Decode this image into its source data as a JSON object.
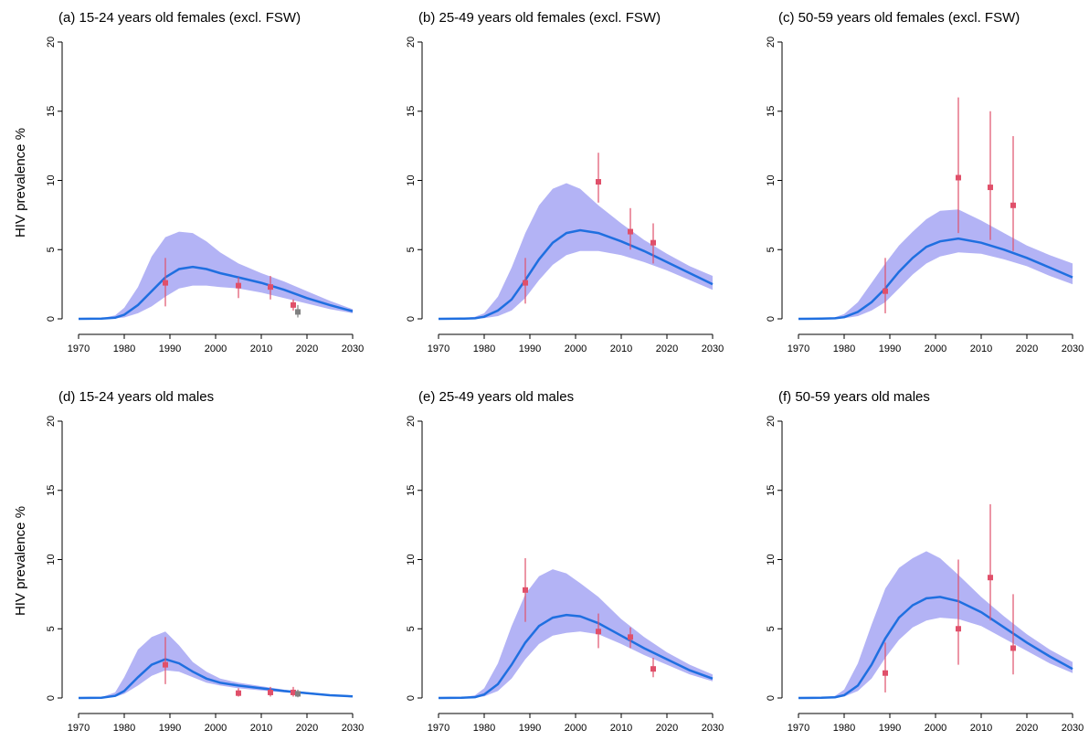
{
  "ylabel": "HIV prevalence %",
  "colors": {
    "band": "#b3b3f5",
    "line": "#1f6fe0",
    "obs": "#e0506a",
    "obs_grey": "#808080",
    "axis": "#000000"
  },
  "chart_data": [
    {
      "type": "line",
      "title": "(a) 15-24 years old females (excl. FSW)",
      "xlim": [
        1970,
        2030
      ],
      "ylim": [
        0,
        20
      ],
      "xticks": [
        1970,
        1980,
        1990,
        2000,
        2010,
        2020,
        2030
      ],
      "yticks": [
        0,
        5,
        10,
        15,
        20
      ],
      "x": [
        1970,
        1975,
        1978,
        1980,
        1983,
        1986,
        1989,
        1992,
        1995,
        1998,
        2001,
        2005,
        2010,
        2015,
        2020,
        2025,
        2030
      ],
      "median": [
        0,
        0.02,
        0.08,
        0.3,
        1.0,
        2.0,
        3.0,
        3.6,
        3.75,
        3.6,
        3.3,
        3.0,
        2.6,
        2.1,
        1.5,
        1.0,
        0.55
      ],
      "lower": [
        0,
        0.01,
        0.03,
        0.1,
        0.4,
        0.9,
        1.6,
        2.2,
        2.4,
        2.4,
        2.3,
        2.2,
        1.9,
        1.5,
        1.1,
        0.7,
        0.4
      ],
      "upper": [
        0,
        0.05,
        0.25,
        0.8,
        2.3,
        4.5,
        5.9,
        6.3,
        6.2,
        5.6,
        4.8,
        4.0,
        3.3,
        2.7,
        2.0,
        1.3,
        0.7
      ],
      "observations": [
        {
          "x": 1989,
          "y": 2.6,
          "lo": 0.9,
          "hi": 4.4
        },
        {
          "x": 2005,
          "y": 2.4,
          "lo": 1.5,
          "hi": 3.0
        },
        {
          "x": 2012,
          "y": 2.3,
          "lo": 1.4,
          "hi": 3.1
        },
        {
          "x": 2017,
          "y": 1.0,
          "lo": 0.6,
          "hi": 1.4
        }
      ],
      "observations_grey": [
        {
          "x": 2018,
          "y": 0.5,
          "lo": 0.1,
          "hi": 1.0
        }
      ]
    },
    {
      "type": "line",
      "title": "(b) 25-49 years old females (excl. FSW)",
      "xlim": [
        1970,
        2030
      ],
      "ylim": [
        0,
        20
      ],
      "xticks": [
        1970,
        1980,
        1990,
        2000,
        2010,
        2020,
        2030
      ],
      "yticks": [
        0,
        5,
        10,
        15,
        20
      ],
      "x": [
        1970,
        1975,
        1978,
        1980,
        1983,
        1986,
        1989,
        1992,
        1995,
        1998,
        2001,
        2005,
        2010,
        2015,
        2020,
        2025,
        2030
      ],
      "median": [
        0,
        0.01,
        0.04,
        0.15,
        0.6,
        1.4,
        2.8,
        4.3,
        5.5,
        6.2,
        6.4,
        6.2,
        5.6,
        4.9,
        4.1,
        3.3,
        2.5
      ],
      "lower": [
        0,
        0.005,
        0.02,
        0.05,
        0.2,
        0.6,
        1.5,
        2.8,
        3.9,
        4.6,
        4.9,
        4.9,
        4.6,
        4.1,
        3.5,
        2.8,
        2.1
      ],
      "upper": [
        0,
        0.03,
        0.15,
        0.4,
        1.6,
        3.7,
        6.2,
        8.2,
        9.4,
        9.8,
        9.4,
        8.2,
        6.9,
        5.7,
        4.7,
        3.8,
        3.1
      ],
      "observations": [
        {
          "x": 1989,
          "y": 2.6,
          "lo": 1.1,
          "hi": 4.4
        },
        {
          "x": 2005,
          "y": 9.9,
          "lo": 8.4,
          "hi": 12.0
        },
        {
          "x": 2012,
          "y": 6.3,
          "lo": 5.0,
          "hi": 8.0
        },
        {
          "x": 2017,
          "y": 5.5,
          "lo": 4.0,
          "hi": 6.9
        }
      ],
      "observations_grey": []
    },
    {
      "type": "line",
      "title": "(c) 50-59 years old females (excl. FSW)",
      "xlim": [
        1970,
        2030
      ],
      "ylim": [
        0,
        20
      ],
      "xticks": [
        1970,
        1980,
        1990,
        2000,
        2010,
        2020,
        2030
      ],
      "yticks": [
        0,
        5,
        10,
        15,
        20
      ],
      "x": [
        1970,
        1975,
        1978,
        1980,
        1983,
        1986,
        1989,
        1992,
        1995,
        1998,
        2001,
        2005,
        2010,
        2015,
        2020,
        2025,
        2030
      ],
      "median": [
        0,
        0.01,
        0.04,
        0.12,
        0.5,
        1.2,
        2.2,
        3.4,
        4.4,
        5.2,
        5.6,
        5.8,
        5.5,
        5.0,
        4.4,
        3.7,
        3.0
      ],
      "lower": [
        0,
        0.005,
        0.02,
        0.04,
        0.2,
        0.6,
        1.2,
        2.2,
        3.2,
        4.0,
        4.5,
        4.8,
        4.7,
        4.3,
        3.8,
        3.1,
        2.5
      ],
      "upper": [
        0,
        0.03,
        0.12,
        0.35,
        1.2,
        2.6,
        4.0,
        5.3,
        6.3,
        7.2,
        7.8,
        7.9,
        7.1,
        6.2,
        5.3,
        4.6,
        4.0
      ],
      "observations": [
        {
          "x": 1989,
          "y": 2.0,
          "lo": 0.4,
          "hi": 4.4
        },
        {
          "x": 2005,
          "y": 10.2,
          "lo": 6.2,
          "hi": 16.0
        },
        {
          "x": 2012,
          "y": 9.5,
          "lo": 5.7,
          "hi": 15.0
        },
        {
          "x": 2017,
          "y": 8.2,
          "lo": 4.9,
          "hi": 13.2
        }
      ],
      "observations_grey": []
    },
    {
      "type": "line",
      "title": "(d) 15-24 years old males",
      "xlim": [
        1970,
        2030
      ],
      "ylim": [
        0,
        20
      ],
      "xticks": [
        1970,
        1980,
        1990,
        2000,
        2010,
        2020,
        2030
      ],
      "yticks": [
        0,
        5,
        10,
        15,
        20
      ],
      "x": [
        1970,
        1975,
        1978,
        1980,
        1983,
        1986,
        1989,
        1992,
        1995,
        1998,
        2001,
        2005,
        2010,
        2015,
        2020,
        2025,
        2030
      ],
      "median": [
        0,
        0.02,
        0.15,
        0.5,
        1.5,
        2.4,
        2.8,
        2.5,
        1.9,
        1.4,
        1.1,
        0.9,
        0.7,
        0.5,
        0.35,
        0.2,
        0.12
      ],
      "lower": [
        0,
        0.01,
        0.08,
        0.3,
        0.9,
        1.6,
        2.0,
        1.9,
        1.5,
        1.1,
        0.9,
        0.7,
        0.55,
        0.4,
        0.28,
        0.15,
        0.08
      ],
      "upper": [
        0,
        0.05,
        0.4,
        1.5,
        3.5,
        4.4,
        4.8,
        3.8,
        2.6,
        1.9,
        1.4,
        1.1,
        0.85,
        0.6,
        0.42,
        0.25,
        0.15
      ],
      "observations": [
        {
          "x": 1989,
          "y": 2.4,
          "lo": 1.0,
          "hi": 4.4
        },
        {
          "x": 2005,
          "y": 0.35,
          "lo": 0.1,
          "hi": 0.7
        },
        {
          "x": 2012,
          "y": 0.4,
          "lo": 0.1,
          "hi": 0.8
        },
        {
          "x": 2017,
          "y": 0.4,
          "lo": 0.1,
          "hi": 0.8
        }
      ],
      "observations_grey": [
        {
          "x": 2018,
          "y": 0.3,
          "lo": 0.05,
          "hi": 0.6
        }
      ]
    },
    {
      "type": "line",
      "title": "(e) 25-49 years old males",
      "xlim": [
        1970,
        2030
      ],
      "ylim": [
        0,
        20
      ],
      "xticks": [
        1970,
        1980,
        1990,
        2000,
        2010,
        2020,
        2030
      ],
      "yticks": [
        0,
        5,
        10,
        15,
        20
      ],
      "x": [
        1970,
        1975,
        1978,
        1980,
        1983,
        1986,
        1989,
        1992,
        1995,
        1998,
        2001,
        2005,
        2010,
        2015,
        2020,
        2025,
        2030
      ],
      "median": [
        0,
        0.01,
        0.06,
        0.25,
        1.0,
        2.4,
        4.0,
        5.2,
        5.8,
        6.0,
        5.9,
        5.4,
        4.5,
        3.6,
        2.8,
        2.0,
        1.4
      ],
      "lower": [
        0,
        0.005,
        0.03,
        0.12,
        0.5,
        1.4,
        2.8,
        3.9,
        4.5,
        4.7,
        4.8,
        4.6,
        3.9,
        3.1,
        2.4,
        1.7,
        1.2
      ],
      "upper": [
        0,
        0.03,
        0.2,
        0.7,
        2.5,
        5.2,
        7.5,
        8.8,
        9.3,
        9.0,
        8.3,
        7.3,
        5.7,
        4.4,
        3.3,
        2.4,
        1.7
      ],
      "observations": [
        {
          "x": 1989,
          "y": 7.8,
          "lo": 5.5,
          "hi": 10.1
        },
        {
          "x": 2005,
          "y": 4.8,
          "lo": 3.6,
          "hi": 6.1
        },
        {
          "x": 2012,
          "y": 4.4,
          "lo": 3.6,
          "hi": 5.1
        },
        {
          "x": 2017,
          "y": 2.1,
          "lo": 1.5,
          "hi": 2.9
        }
      ],
      "observations_grey": []
    },
    {
      "type": "line",
      "title": "(f) 50-59 years old males",
      "xlim": [
        1970,
        2030
      ],
      "ylim": [
        0,
        20
      ],
      "xticks": [
        1970,
        1980,
        1990,
        2000,
        2010,
        2020,
        2030
      ],
      "yticks": [
        0,
        5,
        10,
        15,
        20
      ],
      "x": [
        1970,
        1975,
        1978,
        1980,
        1983,
        1986,
        1989,
        1992,
        1995,
        1998,
        2001,
        2005,
        2010,
        2015,
        2020,
        2025,
        2030
      ],
      "median": [
        0,
        0.01,
        0.05,
        0.2,
        0.9,
        2.4,
        4.3,
        5.8,
        6.7,
        7.2,
        7.3,
        7.0,
        6.2,
        5.1,
        4.0,
        3.0,
        2.1
      ],
      "lower": [
        0,
        0.005,
        0.03,
        0.1,
        0.5,
        1.4,
        2.9,
        4.2,
        5.1,
        5.6,
        5.8,
        5.7,
        5.2,
        4.3,
        3.4,
        2.5,
        1.8
      ],
      "upper": [
        0,
        0.03,
        0.15,
        0.6,
        2.5,
        5.3,
        7.9,
        9.4,
        10.1,
        10.6,
        10.1,
        8.9,
        7.3,
        5.9,
        4.6,
        3.5,
        2.6
      ],
      "observations": [
        {
          "x": 1989,
          "y": 1.8,
          "lo": 0.4,
          "hi": 4.0
        },
        {
          "x": 2005,
          "y": 5.0,
          "lo": 2.4,
          "hi": 10.0
        },
        {
          "x": 2012,
          "y": 8.7,
          "lo": 5.6,
          "hi": 14.0
        },
        {
          "x": 2017,
          "y": 3.6,
          "lo": 1.7,
          "hi": 7.5
        }
      ],
      "observations_grey": []
    }
  ]
}
